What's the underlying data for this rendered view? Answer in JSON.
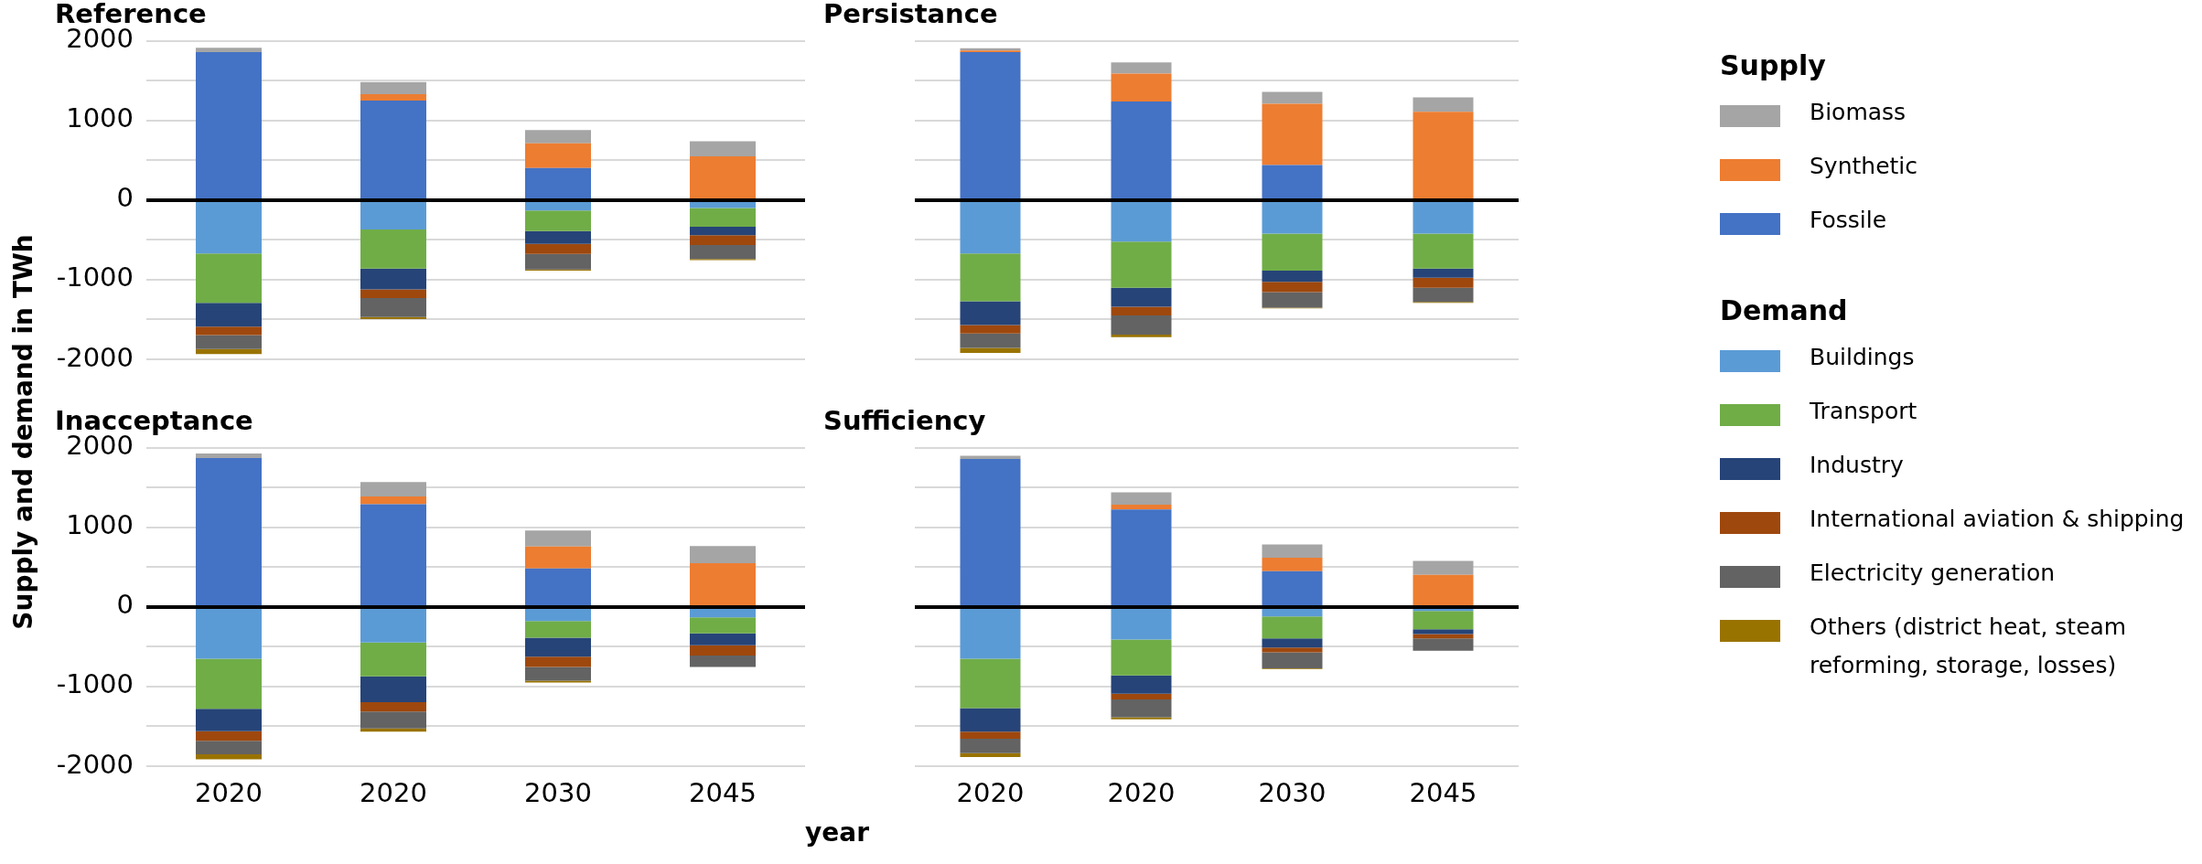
{
  "chart_data": [
    {
      "type": "bar",
      "title": "Reference",
      "ylabel": "Supply and demand in TWh",
      "categories": [
        "2020",
        "2020",
        "2030",
        "2045"
      ],
      "stacked": true,
      "ylim": [
        -2000,
        2000
      ],
      "yticks": [
        -2000,
        {
          "value": -1500,
          "label": null
        },
        -1000,
        {
          "value": -500,
          "label": null
        },
        0,
        {
          "value": 500,
          "label": null
        },
        1000,
        {
          "value": 1500,
          "label": null
        },
        2000
      ],
      "grid": "y",
      "tick_labels": "y",
      "legend": "right",
      "annotations": [
        "Supply",
        "Demand"
      ],
      "ref_lines": [
        {
          "axis": "y",
          "value": 0,
          "color": "#000000"
        }
      ],
      "series": [
        {
          "name": "Fossile",
          "color": "#4472c4",
          "values": [
            1860,
            1250,
            405,
            0
          ]
        },
        {
          "name": "Synthetic",
          "color": "#ed7d31",
          "values": [
            0,
            80,
            310,
            550
          ]
        },
        {
          "name": "Biomass",
          "color": "#a5a5a5",
          "values": [
            55,
            155,
            165,
            190
          ]
        },
        {
          "name": "Buildings",
          "color": "#5b9bd5",
          "values": [
            -670,
            -370,
            -130,
            -100
          ]
        },
        {
          "name": "Transport",
          "color": "#70ad47",
          "values": [
            -620,
            -490,
            -260,
            -235
          ]
        },
        {
          "name": "Industry",
          "color": "#264478",
          "values": [
            -300,
            -260,
            -160,
            -105
          ]
        },
        {
          "name": "International aviation & shipping",
          "color": "#9e480e",
          "values": [
            -105,
            -110,
            -125,
            -125
          ]
        },
        {
          "name": "Electricity generation",
          "color": "#636363",
          "values": [
            -175,
            -240,
            -195,
            -175
          ]
        },
        {
          "name": "Others (district heat, steam reforming, storage, losses)",
          "color": "#997300",
          "values": [
            -65,
            -25,
            -15,
            -15
          ]
        }
      ]
    },
    {
      "type": "bar",
      "title": "Persistance",
      "categories": [
        "2020",
        "2020",
        "2030",
        "2045"
      ],
      "stacked": true,
      "ylim": [
        -2000,
        2000
      ],
      "yticks": [
        -2000,
        {
          "value": -1500,
          "label": null
        },
        -1000,
        {
          "value": -500,
          "label": null
        },
        0,
        {
          "value": 500,
          "label": null
        },
        1000,
        {
          "value": 1500,
          "label": null
        },
        2000
      ],
      "grid": "y",
      "tick_labels": false,
      "ref_lines": [
        {
          "axis": "y",
          "value": 0,
          "color": "#000000"
        }
      ],
      "series": [
        {
          "color": "#4472c4",
          "values": [
            1860,
            1240,
            440,
            0
          ]
        },
        {
          "color": "#ed7d31",
          "values": [
            20,
            350,
            770,
            1110
          ]
        },
        {
          "color": "#a5a5a5",
          "values": [
            30,
            140,
            150,
            180
          ]
        },
        {
          "color": "#5b9bd5",
          "values": [
            -670,
            -520,
            -420,
            -420
          ]
        },
        {
          "color": "#70ad47",
          "values": [
            -600,
            -580,
            -465,
            -440
          ]
        },
        {
          "color": "#264478",
          "values": [
            -300,
            -240,
            -140,
            -115
          ]
        },
        {
          "color": "#9e480e",
          "values": [
            -105,
            -110,
            -130,
            -125
          ]
        },
        {
          "color": "#636363",
          "values": [
            -180,
            -240,
            -195,
            -180
          ]
        },
        {
          "color": "#997300",
          "values": [
            -65,
            -30,
            -10,
            -10
          ]
        }
      ]
    },
    {
      "type": "bar",
      "title": "Inacceptance",
      "categories": [
        "2020",
        "2020",
        "2030",
        "2045"
      ],
      "stacked": true,
      "ylim": [
        -2000,
        2000
      ],
      "yticks": [
        -2000,
        {
          "value": -1500,
          "label": null
        },
        -1000,
        {
          "value": -500,
          "label": null
        },
        0,
        {
          "value": 500,
          "label": null
        },
        1000,
        {
          "value": 1500,
          "label": null
        },
        2000
      ],
      "grid": "y",
      "ref_lines": [
        {
          "axis": "y",
          "value": 0,
          "color": "#000000"
        }
      ],
      "series": [
        {
          "color": "#4472c4",
          "values": [
            1870,
            1290,
            485,
            0
          ]
        },
        {
          "color": "#ed7d31",
          "values": [
            0,
            100,
            275,
            550
          ]
        },
        {
          "color": "#a5a5a5",
          "values": [
            60,
            180,
            200,
            215
          ]
        },
        {
          "color": "#5b9bd5",
          "values": [
            -650,
            -445,
            -175,
            -130
          ]
        },
        {
          "color": "#70ad47",
          "values": [
            -630,
            -425,
            -210,
            -200
          ]
        },
        {
          "color": "#264478",
          "values": [
            -280,
            -325,
            -240,
            -150
          ]
        },
        {
          "color": "#9e480e",
          "values": [
            -120,
            -120,
            -130,
            -130
          ]
        },
        {
          "color": "#636363",
          "values": [
            -170,
            -210,
            -170,
            -145
          ]
        },
        {
          "color": "#997300",
          "values": [
            -65,
            -40,
            -25,
            null
          ]
        }
      ]
    },
    {
      "type": "bar",
      "title": "Sufficiency",
      "xlabel": "year",
      "categories": [
        "2020",
        "2020",
        "2030",
        "2045"
      ],
      "stacked": true,
      "ylim": [
        -2000,
        2000
      ],
      "yticks": [
        -2000,
        {
          "value": -1500,
          "label": null
        },
        -1000,
        {
          "value": -500,
          "label": null
        },
        0,
        {
          "value": 500,
          "label": null
        },
        1000,
        {
          "value": 1500,
          "label": null
        },
        2000
      ],
      "grid": "y",
      "tick_labels": "x",
      "ref_lines": [
        {
          "axis": "y",
          "value": 0,
          "color": "#000000"
        }
      ],
      "series": [
        {
          "color": "#4472c4",
          "values": [
            1860,
            1225,
            450,
            0
          ]
        },
        {
          "color": "#ed7d31",
          "values": [
            0,
            60,
            170,
            405
          ]
        },
        {
          "color": "#a5a5a5",
          "values": [
            40,
            155,
            165,
            175
          ]
        },
        {
          "color": "#5b9bd5",
          "values": [
            -650,
            -410,
            -120,
            -50
          ]
        },
        {
          "color": "#70ad47",
          "values": [
            -620,
            -450,
            -275,
            -230
          ]
        },
        {
          "color": "#264478",
          "values": [
            -295,
            -230,
            -115,
            -60
          ]
        },
        {
          "color": "#9e480e",
          "values": [
            -90,
            -70,
            -60,
            -55
          ]
        },
        {
          "color": "#636363",
          "values": [
            -180,
            -225,
            -200,
            -155
          ]
        },
        {
          "color": "#997300",
          "values": [
            -50,
            -25,
            -10,
            null
          ]
        }
      ]
    }
  ]
}
